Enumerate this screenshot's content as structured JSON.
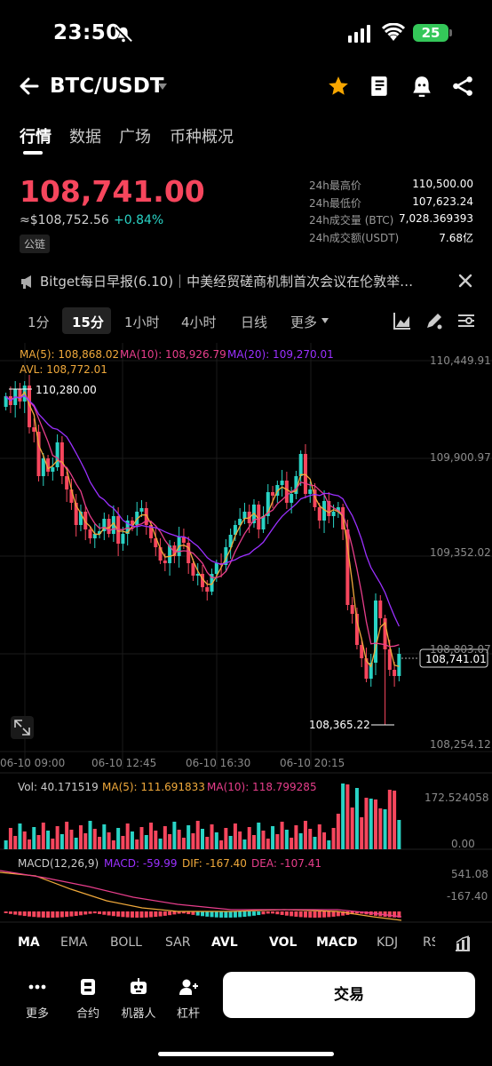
{
  "status_bar": {
    "time": "23:50",
    "battery": "25"
  },
  "header": {
    "pair": "BTC/USDT"
  },
  "tabs": [
    {
      "label": "行情",
      "active": true
    },
    {
      "label": "数据",
      "active": false
    },
    {
      "label": "广场",
      "active": false
    },
    {
      "label": "币种概况",
      "active": false
    }
  ],
  "price": {
    "last": "108,741.00",
    "usd": "≈$108,752.56",
    "change": "+0.84%",
    "chain_badge": "公链"
  },
  "stats": [
    {
      "label": "24h最高价",
      "value": "110,500.00"
    },
    {
      "label": "24h最低价",
      "value": "107,623.24"
    },
    {
      "label": "24h成交量 (BTC)",
      "value": "7,028.369393"
    },
    {
      "label": "24h成交额(USDT)",
      "value": "7.68亿"
    }
  ],
  "news": {
    "text": "Bitget每日早报(6.10)｜中美经贸磋商机制首次会议在伦敦举…"
  },
  "intervals": [
    {
      "label": "1分",
      "active": false
    },
    {
      "label": "15分",
      "active": true
    },
    {
      "label": "1小时",
      "active": false
    },
    {
      "label": "4小时",
      "active": false
    },
    {
      "label": "日线",
      "active": false
    },
    {
      "label": "更多",
      "active": false
    }
  ],
  "chart": {
    "ma5": "MA(5): 108,868.02",
    "ma10": "MA(10): 108,926.79",
    "ma20": "MA(20): 109,270.01",
    "avl": "AVL: 108,772.01",
    "y_ticks": [
      "110,449.91",
      "109,900.97",
      "109,352.02",
      "108,803.07",
      "108,254.12"
    ],
    "x_ticks": [
      "06-10 09:00",
      "06-10 12:45",
      "06-10 16:30",
      "06-10 20:15"
    ],
    "high_marker": "110,280.00",
    "low_marker": "108,365.22",
    "current_price": "108,741.01",
    "colors": {
      "up": "#29d3c5",
      "down": "#f6465d",
      "ma5": "#f0a93b",
      "ma10": "#e83e8c",
      "ma20": "#9b30ff",
      "avl": "#f0a93b"
    }
  },
  "volume": {
    "vol": "Vol: 40.171519",
    "ma5": "MA(5): 111.691833",
    "ma10": "MA(10): 118.799285",
    "y_ticks": [
      "172.524058",
      "0.00"
    ]
  },
  "macd": {
    "label": "MACD(12,26,9)",
    "macd": "MACD: -59.99",
    "dif": "DIF: -167.40",
    "dea": "DEA: -107.41",
    "y_ticks": [
      "541.08",
      "-167.40"
    ]
  },
  "indicator_tabs": [
    {
      "label": "MA",
      "bold": true
    },
    {
      "label": "EMA",
      "bold": false
    },
    {
      "label": "BOLL",
      "bold": false
    },
    {
      "label": "SAR",
      "bold": false
    },
    {
      "label": "AVL",
      "bold": true
    },
    {
      "label": "VOL",
      "bold": true
    },
    {
      "label": "MACD",
      "bold": true
    },
    {
      "label": "KDJ",
      "bold": false
    },
    {
      "label": "RSI",
      "bold": false
    }
  ],
  "bottom_nav": [
    {
      "label": "更多",
      "icon": "dots-icon"
    },
    {
      "label": "合约",
      "icon": "contract-icon"
    },
    {
      "label": "机器人",
      "icon": "robot-icon"
    },
    {
      "label": "杠杆",
      "icon": "leverage-icon"
    }
  ],
  "trade_button": "交易"
}
